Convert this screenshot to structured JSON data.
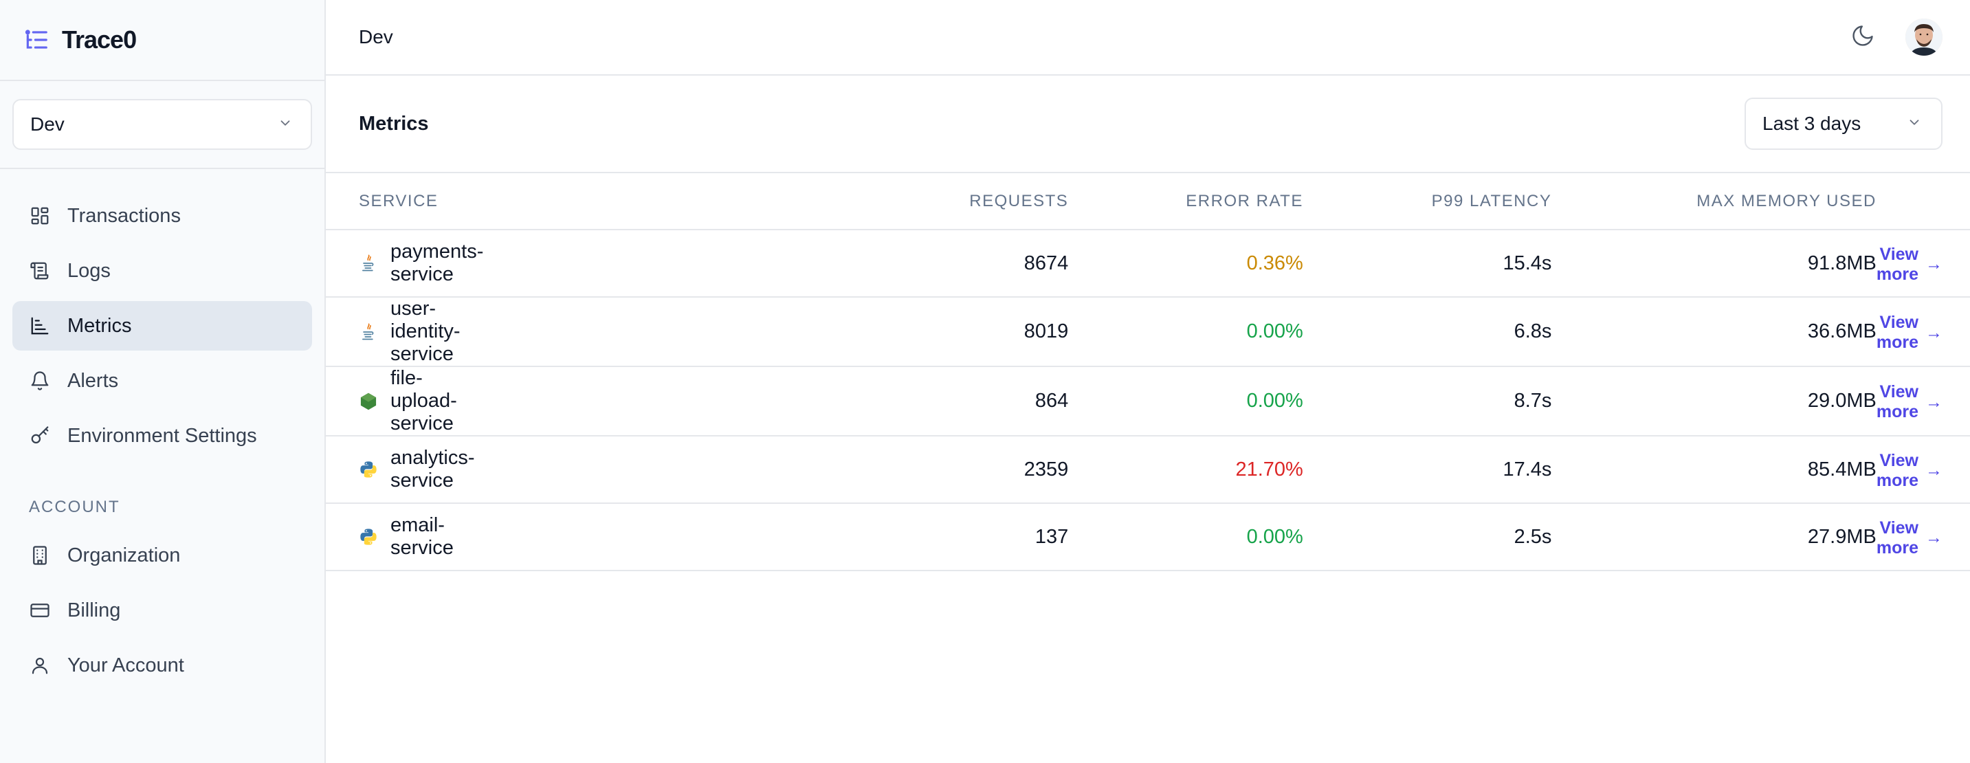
{
  "app": {
    "brand": "Trace0"
  },
  "sidebar": {
    "environment": "Dev",
    "nav_items": [
      {
        "label": "Transactions",
        "icon": "dashboard-icon"
      },
      {
        "label": "Logs",
        "icon": "scroll-icon"
      },
      {
        "label": "Metrics",
        "icon": "bar-chart-icon",
        "active": true
      },
      {
        "label": "Alerts",
        "icon": "bell-icon"
      },
      {
        "label": "Environment Settings",
        "icon": "key-icon"
      }
    ],
    "account_heading": "ACCOUNT",
    "account_items": [
      {
        "label": "Organization",
        "icon": "building-icon"
      },
      {
        "label": "Billing",
        "icon": "credit-card-icon"
      },
      {
        "label": "Your Account",
        "icon": "user-icon"
      }
    ]
  },
  "header": {
    "title": "Dev"
  },
  "metrics": {
    "title": "Metrics",
    "time_range": "Last 3 days",
    "columns": {
      "service": "SERVICE",
      "requests": "REQUESTS",
      "error_rate": "ERROR RATE",
      "latency": "P99 LATENCY",
      "memory": "MAX MEMORY USED"
    },
    "view_more_label": "View more",
    "rows": [
      {
        "service": "payments-service",
        "lang": "java",
        "requests": "8674",
        "error_rate": "0.36%",
        "error_color": "#ca8a04",
        "latency": "15.4s",
        "memory": "91.8MB"
      },
      {
        "service": "user-identity-service",
        "lang": "java",
        "requests": "8019",
        "error_rate": "0.00%",
        "error_color": "#16a34a",
        "latency": "6.8s",
        "memory": "36.6MB"
      },
      {
        "service": "file-upload-service",
        "lang": "node",
        "requests": "864",
        "error_rate": "0.00%",
        "error_color": "#16a34a",
        "latency": "8.7s",
        "memory": "29.0MB"
      },
      {
        "service": "analytics-service",
        "lang": "python",
        "requests": "2359",
        "error_rate": "21.70%",
        "error_color": "#dc2626",
        "latency": "17.4s",
        "memory": "85.4MB"
      },
      {
        "service": "email-service",
        "lang": "python",
        "requests": "137",
        "error_rate": "0.00%",
        "error_color": "#16a34a",
        "latency": "2.5s",
        "memory": "27.9MB"
      }
    ]
  },
  "colors": {
    "accent": "#4f46e5",
    "active_nav_bg": "#e2e8f0"
  }
}
